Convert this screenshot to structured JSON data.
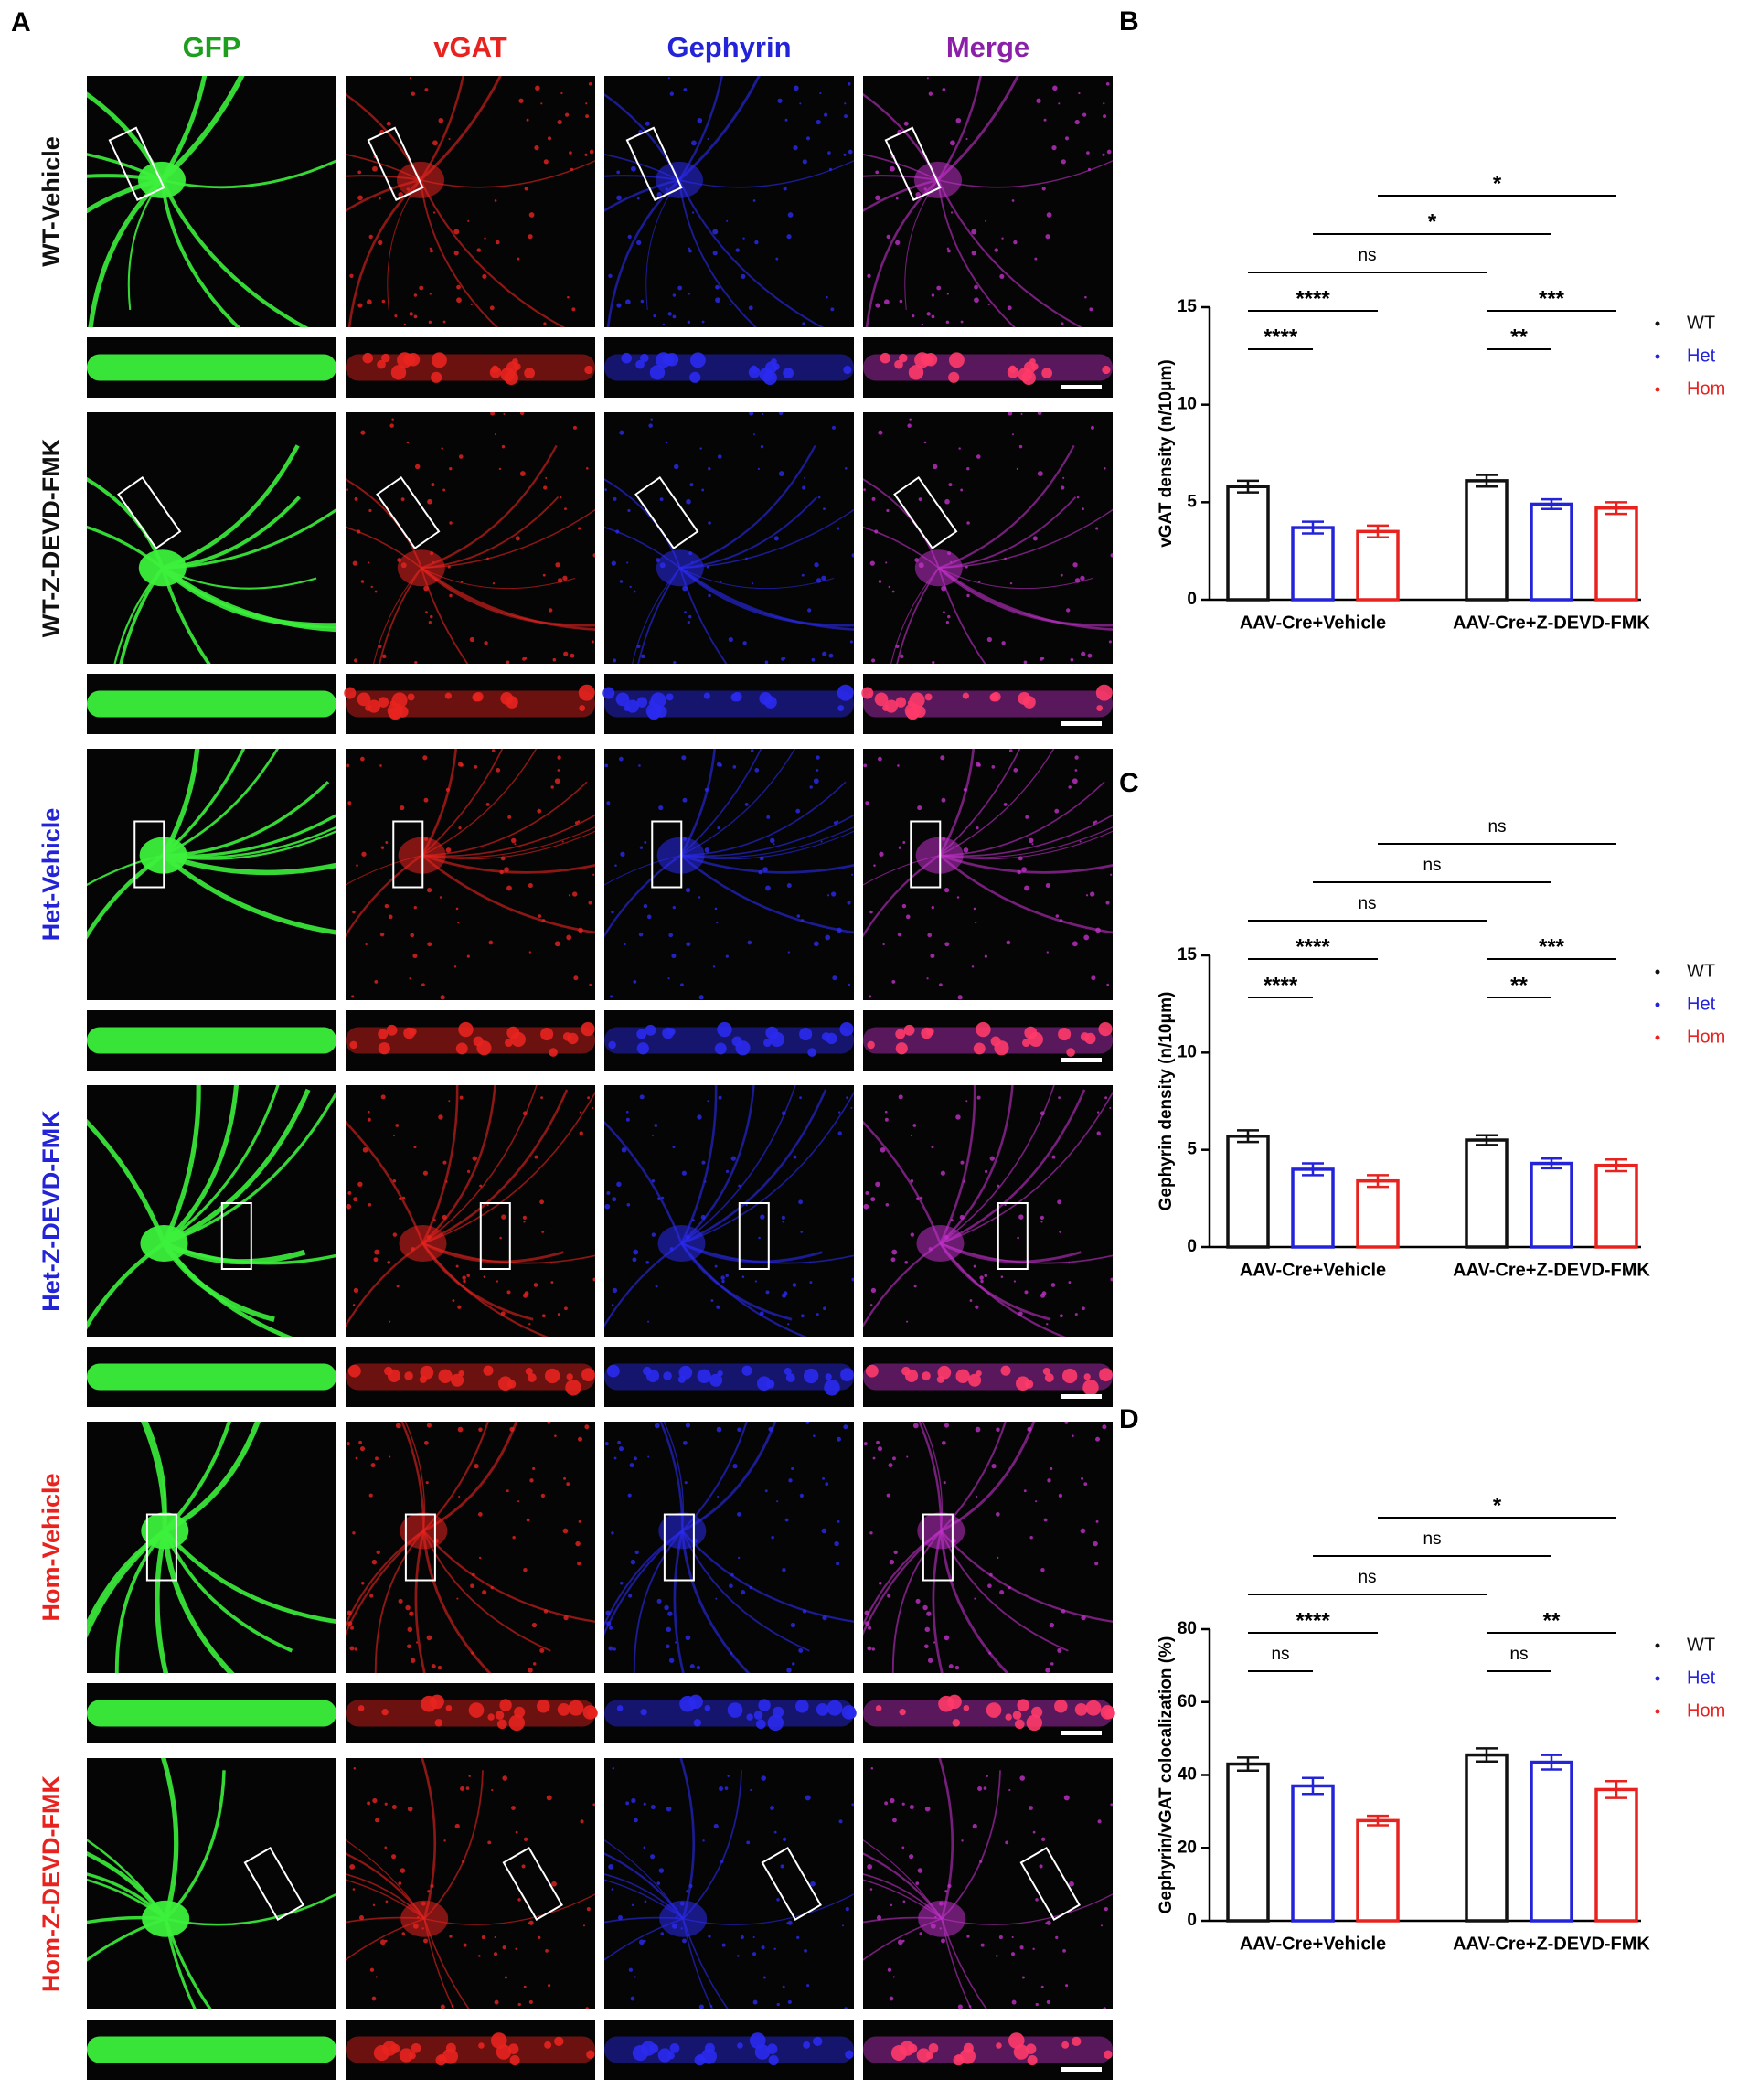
{
  "image_panel": {
    "panel_label": "A",
    "columns": [
      {
        "label": "GFP",
        "color": "#1e9e1e"
      },
      {
        "label": "vGAT",
        "color": "#e8231f"
      },
      {
        "label": "Gephyrin",
        "color": "#2323d8"
      },
      {
        "label": "Merge",
        "color": "#8a1fa8"
      }
    ],
    "rows": [
      {
        "label": "WT-Vehicle",
        "color": "#111111"
      },
      {
        "label": "WT-Z-DEVD-FMK",
        "color": "#111111"
      },
      {
        "label": "Het-Vehicle",
        "color": "#2323d8"
      },
      {
        "label": "Het-Z-DEVD-FMK",
        "color": "#2323d8"
      },
      {
        "label": "Hom-Vehicle",
        "color": "#e8231f"
      },
      {
        "label": "Hom-Z-DEVD-FMK",
        "color": "#e8231f"
      }
    ]
  },
  "chart_data": [
    {
      "type": "bar",
      "panel_label": "B",
      "ylabel": "vGAT density (n/10μm)",
      "categories": [
        "AAV-Cre+Vehicle",
        "AAV-Cre+Z-DEVD-FMK"
      ],
      "series": [
        {
          "name": "WT",
          "color": "#111111",
          "values": [
            5.8,
            6.1
          ],
          "errors": [
            0.3,
            0.3
          ]
        },
        {
          "name": "Het",
          "color": "#2323d8",
          "values": [
            3.7,
            4.9
          ],
          "errors": [
            0.3,
            0.25
          ]
        },
        {
          "name": "Hom",
          "color": "#e8231f",
          "values": [
            3.5,
            4.7
          ],
          "errors": [
            0.3,
            0.3
          ]
        }
      ],
      "ylim": [
        0,
        15
      ],
      "yticks": [
        0,
        5,
        10,
        15
      ],
      "significance": [
        {
          "between": [
            0,
            1
          ],
          "label": "****"
        },
        {
          "between": [
            3,
            4
          ],
          "label": "**"
        },
        {
          "between": [
            0,
            2
          ],
          "label": "****"
        },
        {
          "between": [
            3,
            5
          ],
          "label": "***"
        },
        {
          "between": [
            0,
            3
          ],
          "label": "ns"
        },
        {
          "between": [
            1,
            4
          ],
          "label": "*"
        },
        {
          "between": [
            2,
            5
          ],
          "label": "*"
        }
      ]
    },
    {
      "type": "bar",
      "panel_label": "C",
      "ylabel": "Gephyrin density (n/10μm)",
      "categories": [
        "AAV-Cre+Vehicle",
        "AAV-Cre+Z-DEVD-FMK"
      ],
      "series": [
        {
          "name": "WT",
          "color": "#111111",
          "values": [
            5.7,
            5.5
          ],
          "errors": [
            0.3,
            0.25
          ]
        },
        {
          "name": "Het",
          "color": "#2323d8",
          "values": [
            4.0,
            4.3
          ],
          "errors": [
            0.3,
            0.25
          ]
        },
        {
          "name": "Hom",
          "color": "#e8231f",
          "values": [
            3.4,
            4.2
          ],
          "errors": [
            0.3,
            0.3
          ]
        }
      ],
      "ylim": [
        0,
        15
      ],
      "yticks": [
        0,
        5,
        10,
        15
      ],
      "significance": [
        {
          "between": [
            0,
            1
          ],
          "label": "****"
        },
        {
          "between": [
            3,
            4
          ],
          "label": "**"
        },
        {
          "between": [
            0,
            2
          ],
          "label": "****"
        },
        {
          "between": [
            3,
            5
          ],
          "label": "***"
        },
        {
          "between": [
            0,
            3
          ],
          "label": "ns"
        },
        {
          "between": [
            1,
            4
          ],
          "label": "ns"
        },
        {
          "between": [
            2,
            5
          ],
          "label": "ns"
        }
      ]
    },
    {
      "type": "bar",
      "panel_label": "D",
      "ylabel": "Gephyrin/vGAT colocalization (%)",
      "categories": [
        "AAV-Cre+Vehicle",
        "AAV-Cre+Z-DEVD-FMK"
      ],
      "series": [
        {
          "name": "WT",
          "color": "#111111",
          "values": [
            43,
            45.5
          ],
          "errors": [
            1.8,
            1.8
          ]
        },
        {
          "name": "Het",
          "color": "#2323d8",
          "values": [
            37,
            43.5
          ],
          "errors": [
            2.2,
            2
          ]
        },
        {
          "name": "Hom",
          "color": "#e8231f",
          "values": [
            27.5,
            36
          ],
          "errors": [
            1.3,
            2.3
          ]
        }
      ],
      "ylim": [
        0,
        80
      ],
      "yticks": [
        0,
        20,
        40,
        60,
        80
      ],
      "significance": [
        {
          "between": [
            0,
            1
          ],
          "label": "ns"
        },
        {
          "between": [
            3,
            4
          ],
          "label": "ns"
        },
        {
          "between": [
            0,
            2
          ],
          "label": "****"
        },
        {
          "between": [
            3,
            5
          ],
          "label": "**"
        },
        {
          "between": [
            0,
            3
          ],
          "label": "ns"
        },
        {
          "between": [
            1,
            4
          ],
          "label": "ns"
        },
        {
          "between": [
            2,
            5
          ],
          "label": "*"
        }
      ]
    }
  ]
}
